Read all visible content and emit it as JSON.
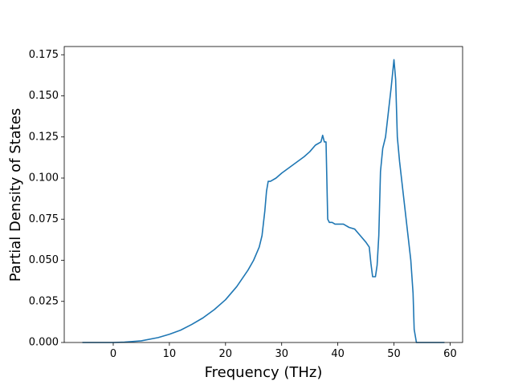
{
  "chart_data": {
    "type": "line",
    "xlabel": "Frequency (THz)",
    "ylabel": "Partial Density of States",
    "x": [
      -5.5,
      0,
      2,
      5,
      8,
      10,
      12,
      14,
      16,
      18,
      20,
      22,
      24,
      25,
      26,
      26.5,
      27,
      27.3,
      27.6,
      28,
      29,
      30,
      32,
      34,
      35,
      36,
      37,
      37.3,
      37.6,
      37.9,
      38.2,
      38.5,
      39,
      39.5,
      40,
      41,
      42,
      43,
      44,
      45,
      45.6,
      45.9,
      46.2,
      46.7,
      47,
      47.3,
      47.6,
      48,
      48.5,
      49,
      49.5,
      50,
      50.3,
      50.6,
      51,
      52,
      53,
      53.4,
      53.6,
      54,
      59
    ],
    "values": [
      0,
      0,
      0.0002,
      0.001,
      0.003,
      0.005,
      0.0075,
      0.011,
      0.015,
      0.02,
      0.026,
      0.034,
      0.044,
      0.05,
      0.058,
      0.065,
      0.08,
      0.092,
      0.098,
      0.098,
      0.1,
      0.103,
      0.108,
      0.113,
      0.116,
      0.12,
      0.122,
      0.126,
      0.122,
      0.122,
      0.075,
      0.073,
      0.073,
      0.072,
      0.072,
      0.072,
      0.07,
      0.069,
      0.065,
      0.061,
      0.058,
      0.048,
      0.04,
      0.04,
      0.047,
      0.065,
      0.104,
      0.118,
      0.125,
      0.14,
      0.155,
      0.172,
      0.16,
      0.125,
      0.11,
      0.08,
      0.05,
      0.03,
      0.008,
      0,
      0
    ],
    "color": "#1f77b4",
    "xlim": [
      -8.725,
      62.225
    ],
    "xticks": [
      0,
      10,
      20,
      30,
      40,
      50,
      60
    ],
    "ylim": [
      0,
      0.18
    ],
    "yticks": [
      {
        "value": 0,
        "label": "0.000"
      },
      {
        "value": 0.025,
        "label": "0.025"
      },
      {
        "value": 0.05,
        "label": "0.050"
      },
      {
        "value": 0.075,
        "label": "0.075"
      },
      {
        "value": 0.1,
        "label": "0.100"
      },
      {
        "value": 0.125,
        "label": "0.125"
      },
      {
        "value": 0.15,
        "label": "0.150"
      },
      {
        "value": 0.175,
        "label": "0.175"
      }
    ]
  }
}
